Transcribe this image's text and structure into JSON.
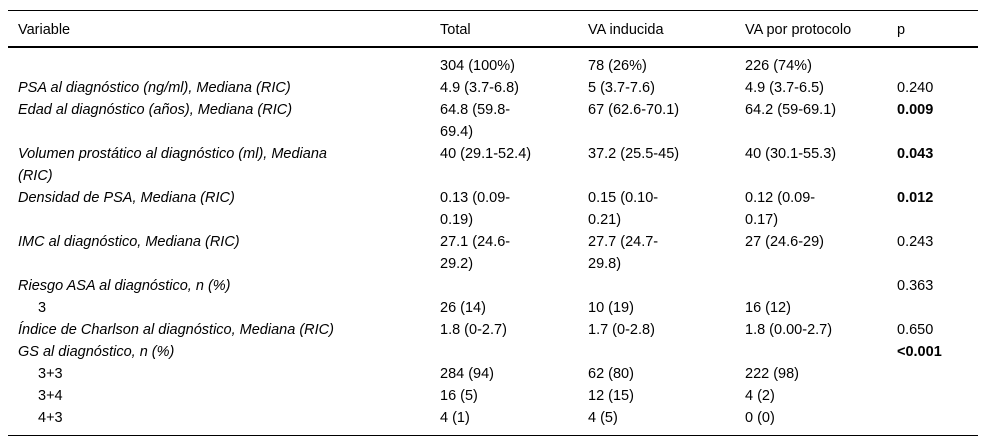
{
  "table": {
    "columns": {
      "variable": "Variable",
      "total": "Total",
      "inducida": "VA inducida",
      "protocolo": "VA por protocolo",
      "p": "p"
    },
    "rows": [
      {
        "variable": "",
        "total": "304 (100%)",
        "inducida": "78 (26%)",
        "protocolo": "226 (74%)",
        "p": ""
      },
      {
        "variable": "PSA al diagnóstico (ng/ml), Mediana (RIC)",
        "total": "4.9 (3.7-6.8)",
        "inducida": "5 (3.7-7.6)",
        "protocolo": "4.9 (3.7-6.5)",
        "p": "0.240"
      },
      {
        "variable": "Edad al diagnóstico (años), Mediana (RIC)",
        "total": "64.8 (59.8-\n69.4)",
        "inducida": "67 (62.6-70.1)",
        "protocolo": "64.2 (59-69.1)",
        "p": "0.009"
      },
      {
        "variable": "Volumen prostático al diagnóstico (ml), Mediana\n(RIC)",
        "total": "40 (29.1-52.4)",
        "inducida": "37.2 (25.5-45)",
        "protocolo": "40 (30.1-55.3)",
        "p": "0.043"
      },
      {
        "variable": "Densidad de PSA, Mediana (RIC)",
        "total": "0.13 (0.09-\n0.19)",
        "inducida": "0.15 (0.10-\n0.21)",
        "protocolo": "0.12 (0.09-\n0.17)",
        "p": "0.012"
      },
      {
        "variable": "IMC al diagnóstico, Mediana (RIC)",
        "total": "27.1 (24.6-\n29.2)",
        "inducida": "27.7 (24.7-\n29.8)",
        "protocolo": "27 (24.6-29)",
        "p": "0.243"
      },
      {
        "variable": "Riesgo ASA al diagnóstico, n (%)",
        "total": "",
        "inducida": "",
        "protocolo": "",
        "p": "0.363"
      },
      {
        "variable": "3",
        "total": "26 (14)",
        "inducida": "10 (19)",
        "protocolo": "16 (12)",
        "p": ""
      },
      {
        "variable": "Índice de Charlson al diagnóstico, Mediana (RIC)",
        "total": "1.8 (0-2.7)",
        "inducida": "1.7 (0-2.8)",
        "protocolo": "1.8 (0.00-2.7)",
        "p": "0.650"
      },
      {
        "variable": "GS al diagnóstico, n (%)",
        "total": "",
        "inducida": "",
        "protocolo": "",
        "p": "<0.001"
      },
      {
        "variable": "3+3",
        "total": "284 (94)",
        "inducida": "62 (80)",
        "protocolo": "222 (98)",
        "p": ""
      },
      {
        "variable": "3+4",
        "total": "16 (5)",
        "inducida": "12 (15)",
        "protocolo": "4 (2)",
        "p": ""
      },
      {
        "variable": "4+3",
        "total": "4 (1)",
        "inducida": "4 (5)",
        "protocolo": "0 (0)",
        "p": ""
      }
    ]
  }
}
